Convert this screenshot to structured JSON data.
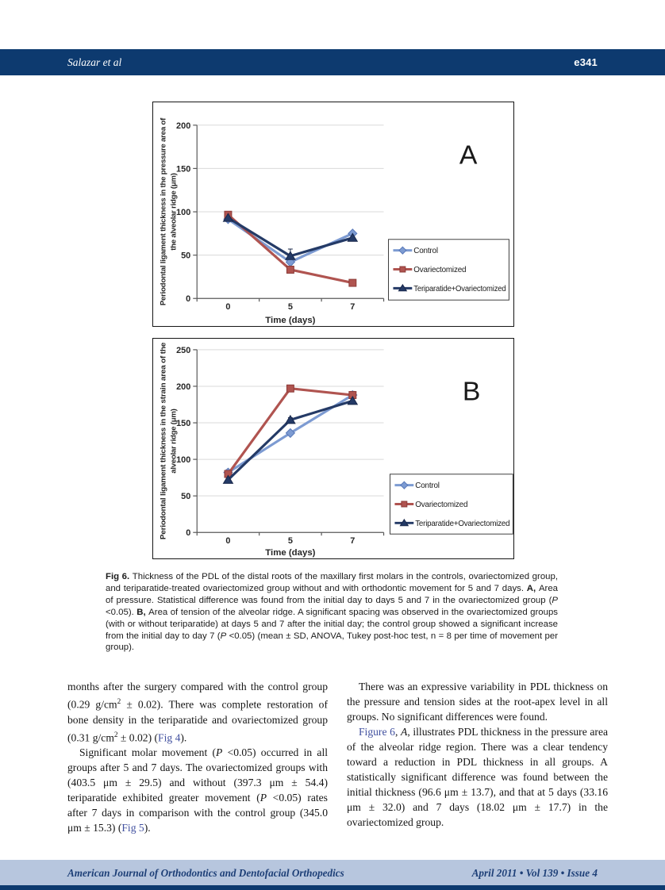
{
  "colors": {
    "navy_bar": "#0d3a6f",
    "footer_bar": "#b7c6de",
    "footer_text": "#1d3f77",
    "link": "#41509f",
    "gridline": "#d9d9d9",
    "axis": "#595959"
  },
  "page": {
    "header": {
      "author": "Salazar et al",
      "page_number": "e341"
    },
    "footer": {
      "journal": "American Journal of Orthodontics and Dentofacial Orthopedics",
      "issue": "April 2011 • Vol 139 • Issue 4"
    }
  },
  "chart_data": [
    {
      "type": "line",
      "panel_label": "A",
      "xlabel": "Time (days)",
      "ylabel": "Periodontal ligament thickness in the pressure area of the alveolar ridge (μm)",
      "ylabel_lines": [
        "Periodontal ligament thickness in the pressure area of",
        "the alveolar ridge (μm)"
      ],
      "x_categories": [
        "0",
        "5",
        "7"
      ],
      "ylim": [
        0,
        200
      ],
      "yticks": [
        0,
        50,
        100,
        150,
        200
      ],
      "grid": true,
      "legend_position": "inside-right",
      "series": [
        {
          "name": "Control",
          "marker": "diamond",
          "color": "#7D9BD2",
          "edge": "#5878B8",
          "values": [
            91.5,
            42,
            75
          ],
          "err": [
            2,
            3,
            2
          ]
        },
        {
          "name": "Ovariectomized",
          "marker": "square",
          "color": "#B05450",
          "edge": "#8B3A37",
          "values": [
            96.6,
            33.2,
            18
          ],
          "err": [
            2,
            3,
            2
          ]
        },
        {
          "name": "Teriparatide+Ovariectomized",
          "marker": "triangle",
          "color": "#243A66",
          "edge": "#18274A",
          "values": [
            93,
            49,
            70
          ],
          "err": [
            2,
            8,
            3
          ]
        }
      ]
    },
    {
      "type": "line",
      "panel_label": "B",
      "xlabel": "Time (days)",
      "ylabel": "Periodontal ligament thickness in the strain area of the alveolar ridge (μm)",
      "ylabel_lines": [
        "Periodontal ligament thickness in the strain area of the",
        "alveolar ridge (μm)"
      ],
      "x_categories": [
        "0",
        "5",
        "7"
      ],
      "ylim": [
        0,
        250
      ],
      "yticks": [
        0,
        50,
        100,
        150,
        200,
        250
      ],
      "grid": true,
      "legend_position": "inside-right",
      "series": [
        {
          "name": "Control",
          "marker": "diamond",
          "color": "#7D9BD2",
          "edge": "#5878B8",
          "values": [
            82,
            136,
            188
          ],
          "err": [
            4,
            2,
            3
          ]
        },
        {
          "name": "Ovariectomized",
          "marker": "square",
          "color": "#B05450",
          "edge": "#8B3A37",
          "values": [
            80,
            197,
            188
          ],
          "err": [
            3,
            4,
            5
          ]
        },
        {
          "name": "Teriparatide+Ovariectomized",
          "marker": "triangle",
          "color": "#243A66",
          "edge": "#18274A",
          "values": [
            72,
            154,
            180
          ],
          "err": [
            3,
            3,
            3
          ]
        }
      ]
    }
  ],
  "figure": {
    "caption_segments": [
      {
        "t": "Fig 6. ",
        "s": "b"
      },
      {
        "t": "Thickness of the PDL of the distal roots of the maxillary first molars in the controls, ovariectomized group, and teriparatide-treated ovariectomized group without and with orthodontic movement for 5 and 7 days. "
      },
      {
        "t": "A, ",
        "s": "b"
      },
      {
        "t": "Area of pressure. Statistical difference was found from the initial day to days 5 and 7 in the ovariectomized group ("
      },
      {
        "t": "P",
        "s": "i"
      },
      {
        "t": " <0.05). "
      },
      {
        "t": "B, ",
        "s": "b"
      },
      {
        "t": "Area of tension of the alveolar ridge. A significant spacing was observed in the ovariectomized groups (with or without teriparatide) at days 5 and 7 after the initial day; the control group showed a significant increase from the initial day to day 7 ("
      },
      {
        "t": "P",
        "s": "i"
      },
      {
        "t": " <0.05) (mean ± SD, ANOVA, Tukey post-hoc test, n = 8 per time of movement per group)."
      }
    ]
  },
  "body": {
    "left_column": [
      {
        "indent": false,
        "segments": [
          {
            "t": "months after the surgery compared with the control group (0.29 g/cm"
          },
          {
            "t": "2",
            "s": "sup"
          },
          {
            "t": " ± 0.02). There was complete restoration of bone density in the teriparatide and ovariectomized group (0.31 g/cm"
          },
          {
            "t": "2",
            "s": "sup"
          },
          {
            "t": " ± 0.02) ("
          },
          {
            "t": "Fig 4",
            "s": "link"
          },
          {
            "t": ")."
          }
        ]
      },
      {
        "indent": true,
        "segments": [
          {
            "t": "Significant molar movement ("
          },
          {
            "t": "P",
            "s": "i"
          },
          {
            "t": " <0.05) occurred in all groups after 5 and 7 days. The ovariectomized groups with (403.5 μm ± 29.5) and without (397.3 μm ± 54.4) teriparatide exhibited greater movement ("
          },
          {
            "t": "P",
            "s": "i"
          },
          {
            "t": " <0.05) rates after 7 days in comparison with the control group (345.0 μm ± 15.3) ("
          },
          {
            "t": "Fig 5",
            "s": "link"
          },
          {
            "t": ")."
          }
        ]
      }
    ],
    "right_column": [
      {
        "indent": true,
        "segments": [
          {
            "t": "There was an expressive variability in PDL thickness on the pressure and tension sides at the root-apex level in all groups. No significant differences were found."
          }
        ]
      },
      {
        "indent": true,
        "segments": [
          {
            "t": "Figure 6",
            "s": "link"
          },
          {
            "t": ", "
          },
          {
            "t": "A",
            "s": "i"
          },
          {
            "t": ", illustrates PDL thickness in the pressure area of the alveolar ridge region. There was a clear tendency toward a reduction in PDL thickness in all groups. A statistically significant difference was found between the initial thickness (96.6 μm ± 13.7), and that at 5 days (33.16 μm ± 32.0) and 7 days (18.02 μm ± 17.7) in the ovariectomized group."
          }
        ]
      }
    ]
  }
}
